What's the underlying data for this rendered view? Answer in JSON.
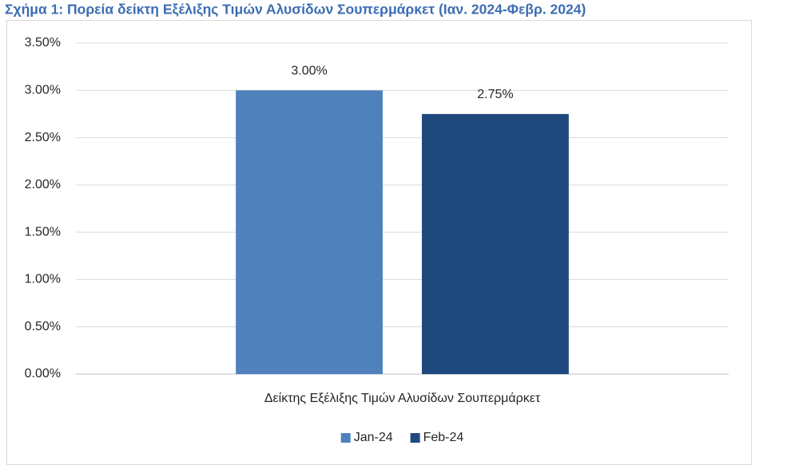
{
  "chart_data": {
    "type": "bar",
    "title": "Σχήμα 1: Πορεία δείκτη Εξέλιξης Τιμών Αλυσίδων Σουπερμάρκετ (Ιαν. 2024-Φεβρ. 2024)",
    "categories": [
      "Δείκτης Εξέλιξης Τιμών Αλυσίδων Σουπερμάρκετ"
    ],
    "series": [
      {
        "name": "Jan-24",
        "color": "#4f81bd",
        "values": [
          3.0
        ],
        "value_labels": [
          "3.00%"
        ]
      },
      {
        "name": "Feb-24",
        "color": "#1f497d",
        "values": [
          2.75
        ],
        "value_labels": [
          "2.75%"
        ]
      }
    ],
    "ylim": [
      0,
      3.5
    ],
    "yticks": [
      {
        "value": 0,
        "label": "0.00%"
      },
      {
        "value": 0.5,
        "label": "0.50%"
      },
      {
        "value": 1,
        "label": "1.00%"
      },
      {
        "value": 1.5,
        "label": "1.50%"
      },
      {
        "value": 2,
        "label": "2.00%"
      },
      {
        "value": 2.5,
        "label": "2.50%"
      },
      {
        "value": 3,
        "label": "3.00%"
      },
      {
        "value": 3.5,
        "label": "3.50%"
      }
    ],
    "grid": true,
    "legend": "bottom"
  }
}
